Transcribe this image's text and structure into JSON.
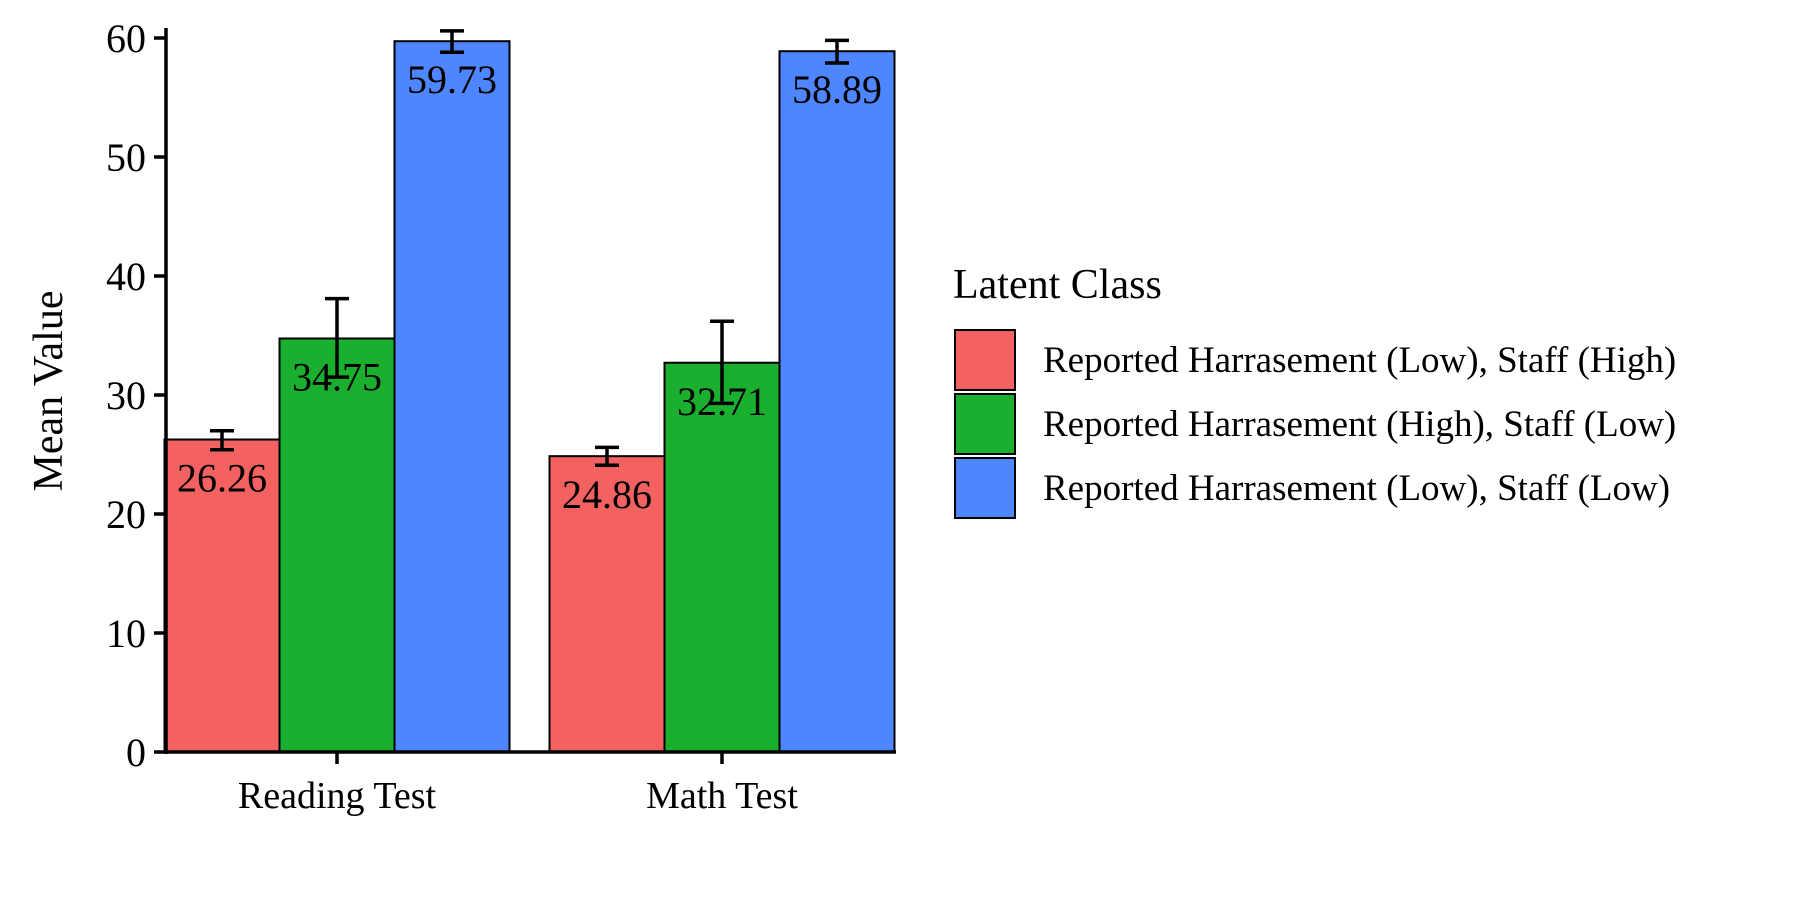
{
  "chart_data": {
    "type": "bar",
    "title": "",
    "xlabel": "",
    "ylabel": "Mean Value",
    "ylim": [
      0,
      60
    ],
    "yticks": [
      0,
      10,
      20,
      30,
      40,
      50,
      60
    ],
    "categories": [
      "Reading Test",
      "Math Test"
    ],
    "series": [
      {
        "name": "Reported Harrasement (Low), Staff (High)",
        "color": "#F36161",
        "values": [
          26.26,
          24.86
        ],
        "labels": [
          "26.26",
          "24.86"
        ],
        "error_low": [
          25.4,
          24.1
        ],
        "error_high": [
          27.0,
          25.6
        ]
      },
      {
        "name": "Reported Harrasement (High), Staff (Low)",
        "color": "#1AAF2E",
        "values": [
          34.75,
          32.71
        ],
        "labels": [
          "34.75",
          "32.71"
        ],
        "error_low": [
          31.5,
          29.3
        ],
        "error_high": [
          38.1,
          36.2
        ]
      },
      {
        "name": "Reported Harrasement (Low), Staff (Low)",
        "color": "#4E86FF",
        "values": [
          59.73,
          58.89
        ],
        "labels": [
          "59.73",
          "58.89"
        ],
        "error_low": [
          58.8,
          57.9
        ],
        "error_high": [
          60.6,
          59.8
        ]
      }
    ],
    "legend": {
      "title": "Latent Class",
      "position": "right"
    },
    "grid": false
  }
}
